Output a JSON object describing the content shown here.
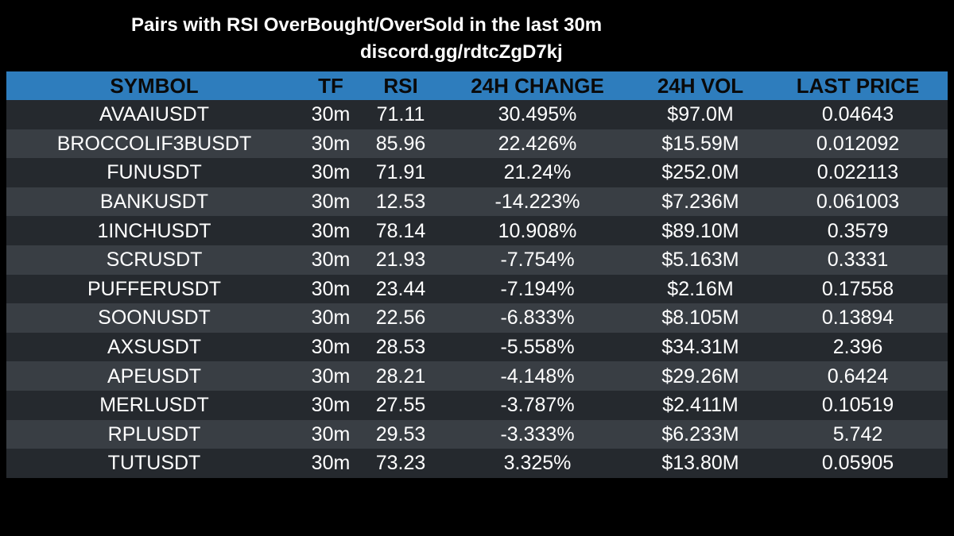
{
  "header": {
    "title": "Pairs with RSI OverBought/OverSold in the last 30m",
    "subtitle": "discord.gg/rdtcZgD7kj"
  },
  "table": {
    "columns": [
      "SYMBOL",
      "TF",
      "RSI",
      "24H CHANGE",
      "24H VOL",
      "LAST PRICE"
    ],
    "rows": [
      [
        "AVAAIUSDT",
        "30m",
        "71.11",
        "30.495%",
        "$97.0M",
        "0.04643"
      ],
      [
        "BROCCOLIF3BUSDT",
        "30m",
        "85.96",
        "22.426%",
        "$15.59M",
        "0.012092"
      ],
      [
        "FUNUSDT",
        "30m",
        "71.91",
        "21.24%",
        "$252.0M",
        "0.022113"
      ],
      [
        "BANKUSDT",
        "30m",
        "12.53",
        "-14.223%",
        "$7.236M",
        "0.061003"
      ],
      [
        "1INCHUSDT",
        "30m",
        "78.14",
        "10.908%",
        "$89.10M",
        "0.3579"
      ],
      [
        "SCRUSDT",
        "30m",
        "21.93",
        "-7.754%",
        "$5.163M",
        "0.3331"
      ],
      [
        "PUFFERUSDT",
        "30m",
        "23.44",
        "-7.194%",
        "$2.16M",
        "0.17558"
      ],
      [
        "SOONUSDT",
        "30m",
        "22.56",
        "-6.833%",
        "$8.105M",
        "0.13894"
      ],
      [
        "AXSUSDT",
        "30m",
        "28.53",
        "-5.558%",
        "$34.31M",
        "2.396"
      ],
      [
        "APEUSDT",
        "30m",
        "28.21",
        "-4.148%",
        "$29.26M",
        "0.6424"
      ],
      [
        "MERLUSDT",
        "30m",
        "27.55",
        "-3.787%",
        "$2.411M",
        "0.10519"
      ],
      [
        "RPLUSDT",
        "30m",
        "29.53",
        "-3.333%",
        "$6.233M",
        "5.742"
      ],
      [
        "TUTUSDT",
        "30m",
        "73.23",
        "3.325%",
        "$13.80M",
        "0.05905"
      ]
    ]
  },
  "colors": {
    "background": "#000000",
    "header_bg": "#2e7dbd",
    "row_dark": "#25292e",
    "row_light": "#393e44",
    "text": "#ffffff"
  }
}
